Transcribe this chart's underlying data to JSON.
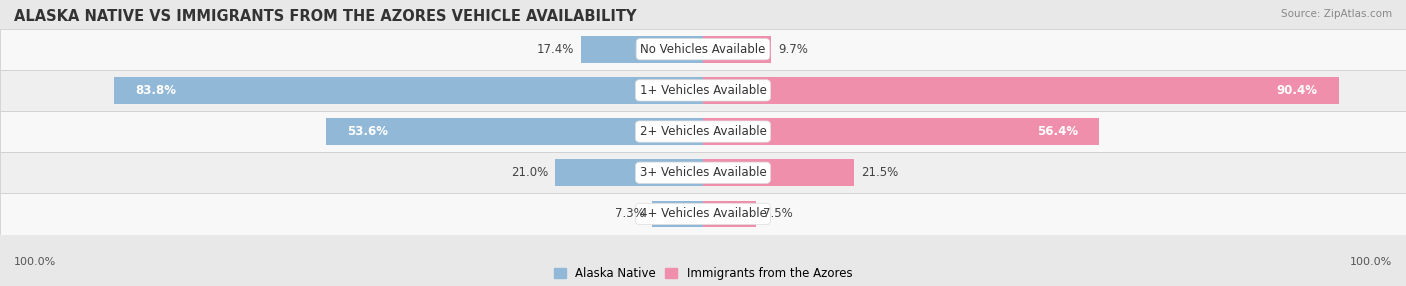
{
  "title": "ALASKA NATIVE VS IMMIGRANTS FROM THE AZORES VEHICLE AVAILABILITY",
  "source": "Source: ZipAtlas.com",
  "categories": [
    "No Vehicles Available",
    "1+ Vehicles Available",
    "2+ Vehicles Available",
    "3+ Vehicles Available",
    "4+ Vehicles Available"
  ],
  "alaska_values": [
    17.4,
    83.8,
    53.6,
    21.0,
    7.3
  ],
  "azores_values": [
    9.7,
    90.4,
    56.4,
    21.5,
    7.5
  ],
  "alaska_color": "#92b8d8",
  "azores_color": "#ef8fab",
  "alaska_label": "Alaska Native",
  "azores_label": "Immigrants from the Azores",
  "max_val": 100.0,
  "bg_color": "#e8e8e8",
  "row_colors": [
    "#f8f8f8",
    "#efefef"
  ],
  "title_fontsize": 10.5,
  "cat_fontsize": 8.5,
  "val_fontsize": 8.5,
  "tick_fontsize": 8.0,
  "bar_height": 0.65,
  "footer_label": "100.0%"
}
